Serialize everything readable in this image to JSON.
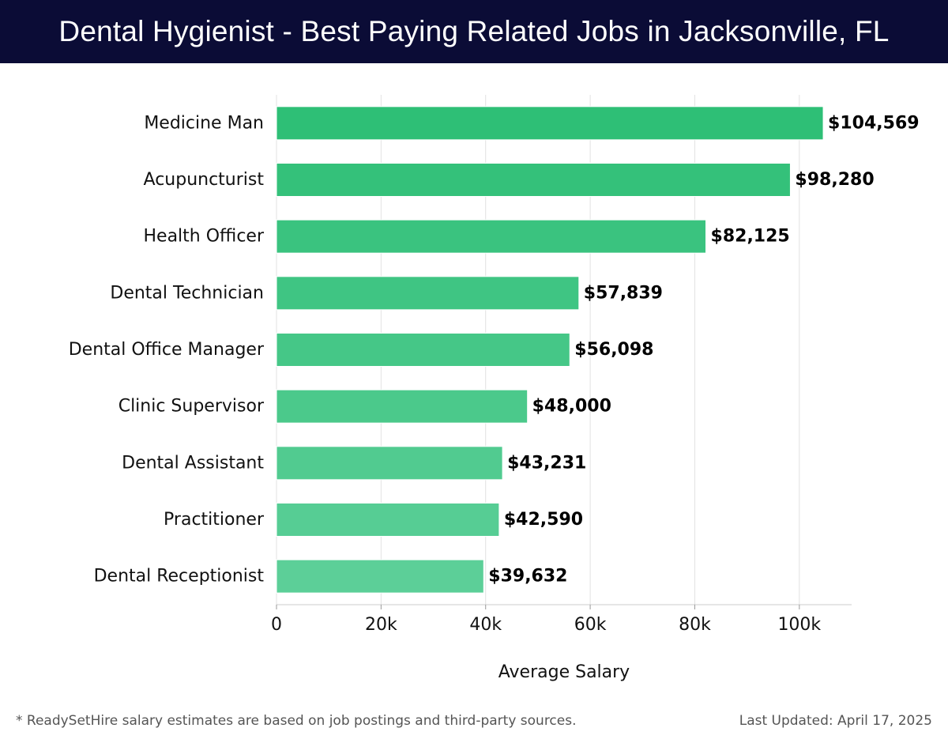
{
  "header": {
    "title": "Dental Hygienist - Best Paying Related Jobs in Jacksonville, FL"
  },
  "footer": {
    "note": "* ReadySetHire salary estimates are based on job postings and third-party sources.",
    "updated": "Last Updated: April 17, 2025"
  },
  "chart_data": {
    "type": "bar",
    "orientation": "horizontal",
    "title": "Dental Hygienist - Best Paying Related Jobs in Jacksonville, FL",
    "xlabel": "Average Salary",
    "ylabel": "",
    "categories": [
      "Medicine Man",
      "Acupuncturist",
      "Health Officer",
      "Dental Technician",
      "Dental Office Manager",
      "Clinic Supervisor",
      "Dental Assistant",
      "Practitioner",
      "Dental Receptionist"
    ],
    "values": [
      104569,
      98280,
      82125,
      57839,
      56098,
      48000,
      43231,
      42590,
      39632
    ],
    "value_labels": [
      "$104,569",
      "$98,280",
      "$82,125",
      "$57,839",
      "$56,098",
      "$48,000",
      "$43,231",
      "$42,590",
      "$39,632"
    ],
    "xlim": [
      0,
      110000
    ],
    "xticks": [
      0,
      20000,
      40000,
      60000,
      80000,
      100000
    ],
    "xtick_labels": [
      "0",
      "20k",
      "40k",
      "60k",
      "80k",
      "100k"
    ],
    "grid": true,
    "colors": {
      "top": "#2ebf76",
      "bottom": "#5ccf98",
      "grid": "#e2e2e2",
      "axis": "#cccccc"
    }
  }
}
